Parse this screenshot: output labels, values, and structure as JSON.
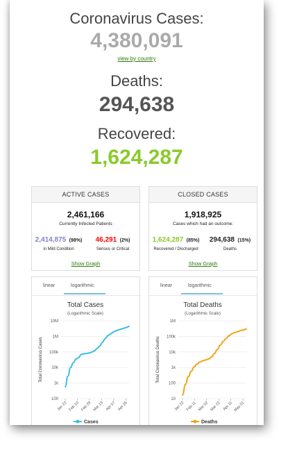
{
  "counters": {
    "cases_label": "Coronavirus Cases:",
    "cases_value": "4,380,091",
    "view_by_country": "view by country",
    "deaths_label": "Deaths:",
    "deaths_value": "294,638",
    "recovered_label": "Recovered:",
    "recovered_value": "1,624,287"
  },
  "active_cases": {
    "title": "ACTIVE CASES",
    "total": "2,461,166",
    "subtitle": "Currently Infected Patients",
    "mild_value": "2,414,875",
    "mild_pct": "(98%)",
    "mild_label": "in Mild Condition",
    "critical_value": "46,291",
    "critical_pct": "(2%)",
    "critical_label": "Serious or Critical",
    "show_graph": "Show Graph"
  },
  "closed_cases": {
    "title": "CLOSED CASES",
    "total": "1,918,925",
    "subtitle": "Cases which had an outcome:",
    "recovered_value": "1,624,287",
    "recovered_pct": "(85%)",
    "recovered_label": "Recovered / Discharged",
    "deaths_value": "294,638",
    "deaths_pct": "(15%)",
    "deaths_label": "Deaths",
    "show_graph": "Show Graph"
  },
  "colors": {
    "cases_line": "#3cbde3",
    "deaths_line": "#f0a413",
    "recovered": "#8aca2b",
    "critical": "#ff0000",
    "mild": "#8080cf"
  },
  "chart_data": [
    {
      "type": "line",
      "tabs": [
        "linear",
        "logarithmic"
      ],
      "active_tab": "logarithmic",
      "title": "Total Cases",
      "subtitle": "(Logarithmic Scale)",
      "ylabel": "Total Coronavirus Cases",
      "yscale": "log",
      "ylim": [
        100,
        10000000
      ],
      "yticks": [
        100,
        1000,
        10000,
        100000,
        1000000,
        10000000
      ],
      "ytick_labels": [
        "100",
        "1k",
        "10k",
        "100k",
        "1M",
        "10M"
      ],
      "xtick_labels": [
        "Jan 22",
        "Feb 10",
        "Feb 29",
        "Mar 19",
        "Apr 07",
        "Apr 26"
      ],
      "x": [
        "Jan 22",
        "Jan 26",
        "Jan 30",
        "Feb 03",
        "Feb 07",
        "Feb 10",
        "Feb 15",
        "Feb 20",
        "Feb 25",
        "Feb 29",
        "Mar 05",
        "Mar 10",
        "Mar 15",
        "Mar 19",
        "Mar 24",
        "Mar 29",
        "Apr 03",
        "Apr 07",
        "Apr 12",
        "Apr 17",
        "Apr 22",
        "Apr 26",
        "May 01",
        "May 06",
        "May 13"
      ],
      "series": [
        {
          "name": "Cases",
          "values": [
            580,
            2800,
            9800,
            20000,
            34000,
            43000,
            69000,
            76000,
            80000,
            86000,
            98000,
            119000,
            169000,
            242000,
            418000,
            720000,
            1090000,
            1430000,
            1850000,
            2240000,
            2620000,
            2920000,
            3360000,
            3740000,
            4380000
          ]
        }
      ],
      "legend": "bottom"
    },
    {
      "type": "line",
      "tabs": [
        "linear",
        "logarithmic"
      ],
      "active_tab": "logarithmic",
      "title": "Total Deaths",
      "subtitle": "(Logarithmic Scale)",
      "ylabel": "Total Coronavirus Deaths",
      "yscale": "log",
      "ylim": [
        10,
        1000000
      ],
      "yticks": [
        10,
        100,
        1000,
        10000,
        100000,
        1000000
      ],
      "ytick_labels": [
        "10",
        "100",
        "1k",
        "10k",
        "100k",
        "1M"
      ],
      "xtick_labels": [
        "Jan 22",
        "Feb 11",
        "Mar 02",
        "Mar 22",
        "Apr 11",
        "May 01"
      ],
      "x": [
        "Jan 22",
        "Jan 27",
        "Feb 01",
        "Feb 06",
        "Feb 11",
        "Feb 16",
        "Feb 21",
        "Feb 26",
        "Mar 02",
        "Mar 07",
        "Mar 12",
        "Mar 17",
        "Mar 22",
        "Mar 27",
        "Apr 01",
        "Apr 06",
        "Apr 11",
        "Apr 16",
        "Apr 21",
        "Apr 26",
        "May 01",
        "May 06",
        "May 13"
      ],
      "series": [
        {
          "name": "Deaths",
          "values": [
            17,
            82,
            259,
            565,
            1100,
            1660,
            2250,
            2710,
            3050,
            3550,
            4720,
            7900,
            14600,
            27300,
            47200,
            72700,
            108000,
            148000,
            176000,
            203000,
            235000,
            263000,
            294638
          ]
        }
      ],
      "legend": "bottom"
    }
  ]
}
